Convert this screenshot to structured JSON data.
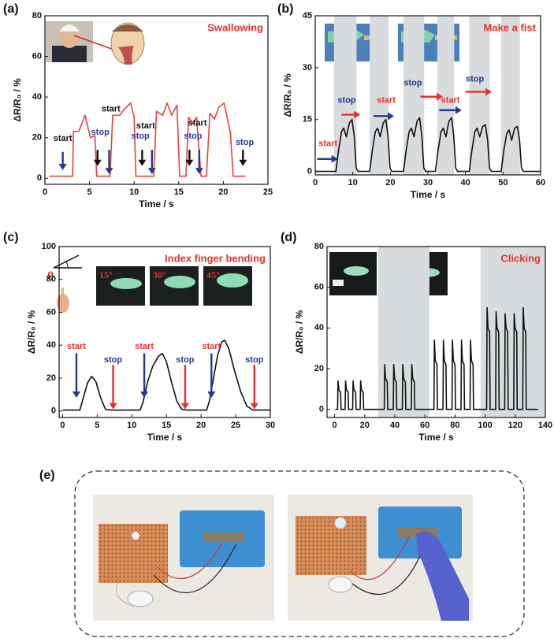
{
  "chart_data": [
    {
      "type": "line",
      "panel_label": "(a)",
      "title": "Swallowing",
      "title_color": "#e8302a",
      "xlabel": "Time / s",
      "ylabel": "ΔR/R₀ / %",
      "xlim": [
        0,
        25
      ],
      "ylim": [
        -3,
        80
      ],
      "xticks": [
        0,
        5,
        10,
        15,
        20,
        25
      ],
      "yticks": [
        0,
        20,
        40,
        60,
        80
      ],
      "x": [
        0.5,
        3.1,
        3.2,
        3.8,
        4.5,
        5.1,
        5.6,
        5.8,
        7.3,
        7.6,
        8.4,
        8.9,
        9.6,
        10,
        10.2,
        12.2,
        12.5,
        13.2,
        13.7,
        14.2,
        14.8,
        15.1,
        15.8,
        16.1,
        16.6,
        17,
        17.5,
        18.1,
        18.5,
        19,
        19.5,
        20.1,
        20.8,
        21.1,
        22.5
      ],
      "series": [
        {
          "color": "#e8433a",
          "values": [
            1,
            1,
            23,
            23,
            31,
            20,
            21,
            1,
            1,
            31,
            31,
            34,
            37,
            30,
            1,
            1,
            33,
            31,
            37,
            31,
            36,
            1,
            1,
            30,
            27,
            30,
            1,
            1,
            32,
            29,
            35,
            37,
            22,
            1,
            1
          ]
        }
      ],
      "shaded": [],
      "arrows": [
        {
          "x1": 2,
          "y1": 13,
          "x2": 2,
          "y2": 4,
          "color": "#23398f"
        },
        {
          "x1": 5.9,
          "y1": 14,
          "x2": 5.9,
          "y2": 6,
          "color": "#111111"
        },
        {
          "x1": 7.2,
          "y1": 14,
          "x2": 7.2,
          "y2": 2,
          "color": "#23398f"
        },
        {
          "x1": 10.9,
          "y1": 14,
          "x2": 10.9,
          "y2": 6,
          "color": "#111111"
        },
        {
          "x1": 12,
          "y1": 14,
          "x2": 12,
          "y2": 2,
          "color": "#23398f"
        },
        {
          "x1": 16.2,
          "y1": 14,
          "x2": 16.2,
          "y2": 6,
          "color": "#111111"
        },
        {
          "x1": 17.3,
          "y1": 14,
          "x2": 17.3,
          "y2": 2,
          "color": "#23398f"
        },
        {
          "x1": 22.2,
          "y1": 14,
          "x2": 22.2,
          "y2": 6,
          "color": "#111111"
        }
      ],
      "labels": [
        {
          "text": "start",
          "x": 2,
          "y": 19.4,
          "color": "#111111"
        },
        {
          "text": "stop",
          "x": 6.2,
          "y": 22.5,
          "color": "#23398f"
        },
        {
          "text": "start",
          "x": 7.4,
          "y": 34,
          "color": "#111111"
        },
        {
          "text": "stop",
          "x": 10.7,
          "y": 20.6,
          "color": "#23398f"
        },
        {
          "text": "start",
          "x": 11.3,
          "y": 25.6,
          "color": "#111111"
        },
        {
          "text": "stop",
          "x": 16.6,
          "y": 20.6,
          "color": "#23398f"
        },
        {
          "text": "start",
          "x": 17.1,
          "y": 27,
          "color": "#111111"
        },
        {
          "text": "stop",
          "x": 22.4,
          "y": 17.5,
          "color": "#23398f"
        }
      ]
    },
    {
      "type": "line",
      "panel_label": "(b)",
      "title": "Make a fist",
      "title_color": "#e8302a",
      "xlabel": "Time / s",
      "ylabel": "ΔR/R₀ / %",
      "xlim": [
        0,
        60
      ],
      "ylim": [
        -1,
        45
      ],
      "xticks": [
        0,
        10,
        20,
        30,
        40,
        50,
        60
      ],
      "yticks": [
        0,
        15,
        30,
        45
      ],
      "x": [
        0,
        5.5,
        6.2,
        7,
        7.6,
        8.3,
        9.1,
        9.8,
        10.4,
        10.9,
        11.4,
        14.5,
        15.2,
        16,
        16.6,
        17.3,
        18.1,
        18.8,
        19.4,
        19.9,
        20.4,
        23.5,
        24.2,
        25,
        25.6,
        26.3,
        27.1,
        27.8,
        28.4,
        28.9,
        29.4,
        32,
        32.7,
        33.5,
        34.1,
        34.8,
        35.6,
        36.3,
        36.9,
        37.4,
        37.9,
        41,
        41.7,
        42.5,
        43.1,
        43.8,
        44.6,
        45.3,
        45.9,
        46.4,
        46.9,
        49.5,
        50.2,
        51,
        51.6,
        52.3,
        53.1,
        53.8,
        54.4,
        54.9,
        55.4,
        60
      ],
      "series": [
        {
          "color": "#111111",
          "values": [
            0,
            0,
            6,
            11.5,
            12.5,
            10,
            14,
            15,
            10,
            1,
            0,
            0,
            6,
            11.5,
            12.5,
            10,
            14,
            15,
            10,
            1,
            0,
            0,
            6,
            11.5,
            12.5,
            10,
            14.5,
            15.5,
            10,
            1,
            0,
            0,
            6,
            11.5,
            12.5,
            10,
            14.5,
            15.5,
            10,
            1,
            0,
            0,
            6,
            11.5,
            12.5,
            10,
            13,
            13.5,
            9,
            1,
            0,
            0,
            6,
            11,
            12,
            9,
            12.5,
            13,
            9,
            1,
            0,
            0
          ]
        }
      ],
      "shaded": [
        [
          5,
          11
        ],
        [
          14.5,
          19.5
        ],
        [
          23.5,
          29
        ],
        [
          32.5,
          37
        ],
        [
          41,
          46.5
        ],
        [
          49.5,
          54.5
        ]
      ],
      "arrows": [
        {
          "x1": 0.5,
          "y1": 3.6,
          "x2": 6,
          "y2": 3.6,
          "color": "#23398f"
        },
        {
          "x1": 7,
          "y1": 16.4,
          "x2": 12,
          "y2": 16.4,
          "color": "#e8302a"
        },
        {
          "x1": 15.5,
          "y1": 16,
          "x2": 21,
          "y2": 16,
          "color": "#23398f"
        },
        {
          "x1": 28,
          "y1": 21.6,
          "x2": 34,
          "y2": 21.6,
          "color": "#e8302a"
        },
        {
          "x1": 33,
          "y1": 17.7,
          "x2": 39,
          "y2": 17.7,
          "color": "#23398f"
        },
        {
          "x1": 40,
          "y1": 23,
          "x2": 47,
          "y2": 23,
          "color": "#e8302a"
        }
      ],
      "labels": [
        {
          "text": "start",
          "x": 3.4,
          "y": 8,
          "color": "#e8302a"
        },
        {
          "text": "stop",
          "x": 8.4,
          "y": 20.5,
          "color": "#23398f"
        },
        {
          "text": "start",
          "x": 18.9,
          "y": 20.5,
          "color": "#e8302a"
        },
        {
          "text": "stop",
          "x": 26,
          "y": 25.5,
          "color": "#23398f"
        },
        {
          "text": "start",
          "x": 36,
          "y": 20.5,
          "color": "#e8302a"
        },
        {
          "text": "stop",
          "x": 42.5,
          "y": 26.6,
          "color": "#23398f"
        }
      ]
    },
    {
      "type": "line",
      "panel_label": "(c)",
      "title": "Index finger bending",
      "title_color": "#e8302a",
      "xlabel": "Time / s",
      "ylabel": "ΔR/R₀ / %",
      "xlim": [
        -0.5,
        30
      ],
      "ylim": [
        -4,
        100
      ],
      "xticks": [
        0,
        5,
        10,
        15,
        20,
        25,
        30
      ],
      "yticks": [
        0,
        20,
        40,
        60,
        80,
        100
      ],
      "inset_labels": [
        "15°",
        "30°",
        "45°"
      ],
      "symbol": "θ",
      "x": [
        0,
        2.5,
        3,
        3.6,
        4.2,
        4.8,
        5.5,
        6.2,
        7,
        11.2,
        11.6,
        12.3,
        13,
        13.8,
        14.4,
        15,
        15.7,
        16.5,
        17.2,
        18,
        20.8,
        21.2,
        21.8,
        22.4,
        23,
        23.4,
        24,
        24.8,
        25.7,
        26.6,
        27.5,
        30
      ],
      "series": [
        {
          "color": "#111111",
          "values": [
            0.5,
            0.5,
            8,
            17,
            21,
            18,
            8,
            1,
            0.5,
            0.5,
            5,
            18,
            27,
            33,
            35,
            30,
            18,
            6,
            1,
            0.5,
            0.5,
            6,
            20,
            34,
            42,
            43,
            38,
            25,
            12,
            3,
            0.5,
            0.5
          ]
        }
      ],
      "shaded": [],
      "arrows": [
        {
          "x1": 2,
          "y1": 35,
          "x2": 2,
          "y2": 8,
          "color": "#23398f"
        },
        {
          "x1": 7.3,
          "y1": 28,
          "x2": 7.3,
          "y2": 1,
          "color": "#e8302a"
        },
        {
          "x1": 11.8,
          "y1": 35,
          "x2": 11.8,
          "y2": 8,
          "color": "#23398f"
        },
        {
          "x1": 17.7,
          "y1": 28,
          "x2": 17.7,
          "y2": 1,
          "color": "#e8302a"
        },
        {
          "x1": 21.5,
          "y1": 35,
          "x2": 21.5,
          "y2": 8,
          "color": "#23398f"
        },
        {
          "x1": 27.7,
          "y1": 28,
          "x2": 27.7,
          "y2": 1,
          "color": "#e8302a"
        }
      ],
      "labels": [
        {
          "text": "start",
          "x": 2,
          "y": 39,
          "color": "#e8302a"
        },
        {
          "text": "stop",
          "x": 7.3,
          "y": 31,
          "color": "#23398f"
        },
        {
          "text": "start",
          "x": 11.8,
          "y": 39,
          "color": "#e8302a"
        },
        {
          "text": "stop",
          "x": 17.7,
          "y": 31,
          "color": "#23398f"
        },
        {
          "text": "start",
          "x": 21.5,
          "y": 39,
          "color": "#e8302a"
        },
        {
          "text": "stop",
          "x": 27.7,
          "y": 31,
          "color": "#23398f"
        }
      ]
    },
    {
      "type": "line",
      "panel_label": "(d)",
      "title": "Clicking",
      "title_color": "#e8302a",
      "xlabel": "Time / s",
      "ylabel": "ΔR/R₀ / %",
      "xlim": [
        -5,
        140
      ],
      "ylim": [
        -4,
        80
      ],
      "xticks": [
        0,
        20,
        40,
        60,
        80,
        100,
        120,
        140
      ],
      "yticks": [
        0,
        20,
        40,
        60,
        80
      ],
      "x": [
        0.5,
        2,
        2.3,
        2.9,
        4,
        4.3,
        7,
        7.3,
        7.9,
        9,
        9.3,
        12,
        12.3,
        12.9,
        14,
        14.3,
        17,
        17.3,
        17.9,
        19,
        19.3,
        33,
        33.3,
        33.9,
        35,
        35.3,
        39,
        39.3,
        39.9,
        41,
        41.3,
        45,
        45.3,
        45.9,
        47,
        47.3,
        51,
        51.3,
        51.9,
        53,
        53.3,
        66,
        66.3,
        66.9,
        68,
        68.3,
        72,
        72.3,
        72.9,
        74,
        74.3,
        78,
        78.3,
        78.9,
        80,
        80.3,
        84,
        84.3,
        84.9,
        86,
        86.3,
        90,
        90.3,
        90.9,
        92,
        92.3,
        101,
        101.3,
        101.9,
        103,
        103.3,
        107,
        107.3,
        107.9,
        109,
        109.3,
        113,
        113.3,
        113.9,
        115,
        115.3,
        119,
        119.3,
        119.9,
        121,
        121.3,
        125,
        125.3,
        125.9,
        127,
        127.3,
        135
      ],
      "series": [
        {
          "color": "#111111",
          "values": [
            0,
            0,
            14,
            9.5,
            8.5,
            0,
            0,
            14,
            9.5,
            8.5,
            0,
            0,
            14,
            9.5,
            8.5,
            0,
            0,
            14,
            9.5,
            8.5,
            0,
            0,
            22,
            15,
            13.5,
            0,
            0,
            22,
            15,
            13.5,
            0,
            0,
            22,
            15,
            13.5,
            0,
            0,
            22,
            15,
            13.5,
            0,
            0,
            34,
            24,
            22,
            0,
            0,
            34,
            24,
            22,
            0,
            0,
            34,
            24,
            22,
            0,
            0,
            34,
            24,
            22,
            0,
            0,
            34,
            24,
            22,
            0,
            0,
            50,
            40,
            38,
            0,
            0,
            48,
            40,
            38,
            0,
            0,
            47,
            40,
            38,
            0,
            0,
            47,
            40,
            38,
            0,
            0,
            50,
            40,
            38,
            0,
            0
          ]
        }
      ],
      "shaded": [
        [
          29,
          63
        ],
        [
          97,
          140
        ]
      ],
      "arrows": [],
      "labels": []
    }
  ],
  "panel_e": {
    "label": "(e)"
  }
}
